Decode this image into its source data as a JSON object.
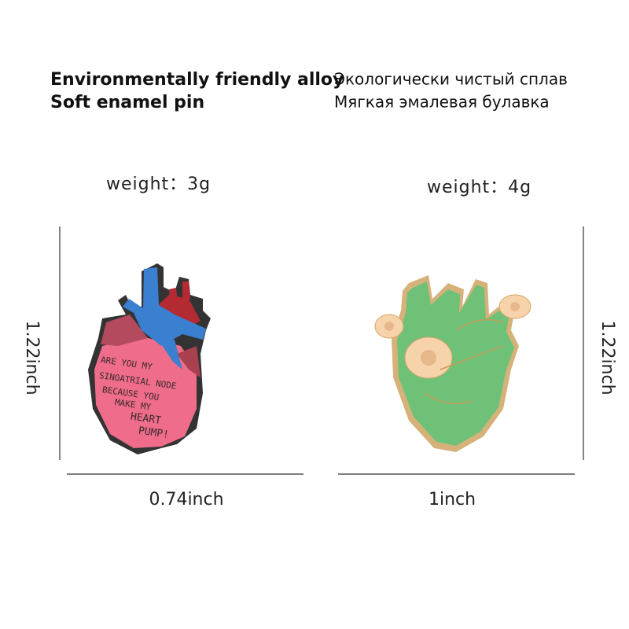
{
  "left": {
    "heading": [
      "Environmentally friendly alloy",
      "Soft enamel pin"
    ],
    "weight": "weight：3g",
    "height": "1.22inch",
    "width": "0.74inch",
    "pin_text": [
      "ARE YOU MY",
      "SINOATRIAL NODE",
      "BECAUSE YOU",
      "MAKE MY",
      "HEART",
      "PUMP!"
    ]
  },
  "right": {
    "heading": [
      "Экологически чистый сплав",
      "Мягкая эмалевая булавка"
    ],
    "weight": "weight：4g",
    "height": "1.22inch",
    "width": "1inch"
  }
}
